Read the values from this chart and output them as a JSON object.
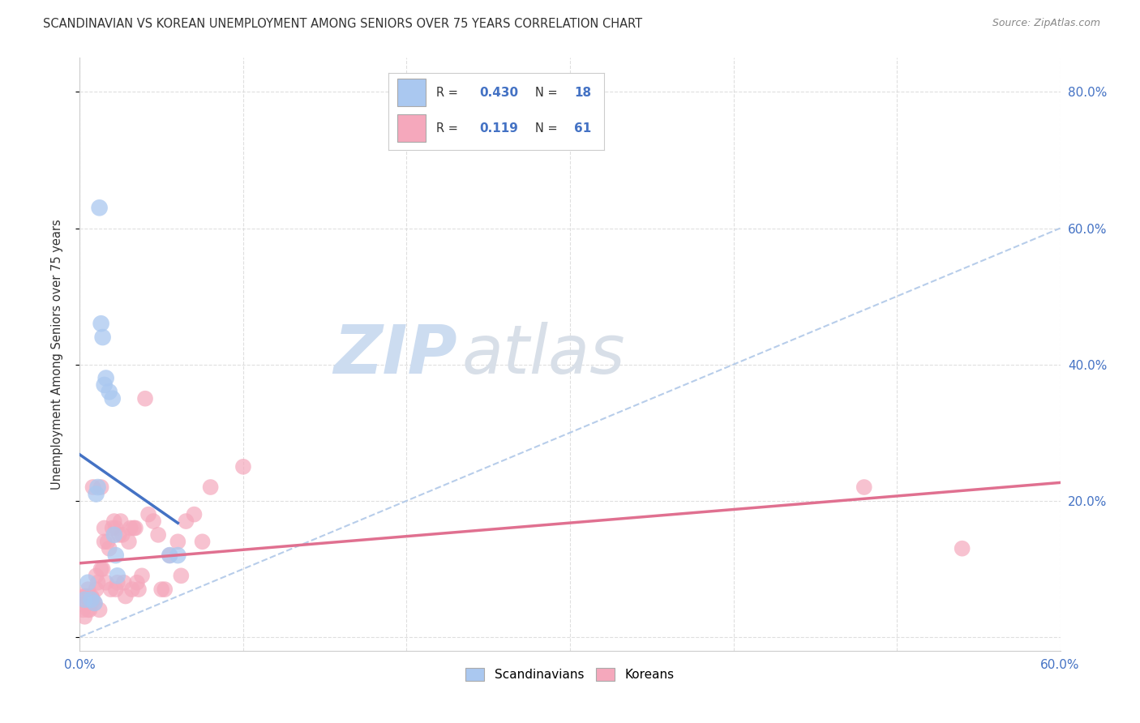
{
  "title": "SCANDINAVIAN VS KOREAN UNEMPLOYMENT AMONG SENIORS OVER 75 YEARS CORRELATION CHART",
  "source": "Source: ZipAtlas.com",
  "ylabel": "Unemployment Among Seniors over 75 years",
  "xlim": [
    0.0,
    0.6
  ],
  "ylim": [
    -0.02,
    0.85
  ],
  "scand_color": "#aac8f0",
  "korean_color": "#f5a8bc",
  "scand_line_color": "#4472c4",
  "korean_line_color": "#e07090",
  "diagonal_color": "#b0c8e8",
  "watermark_zip_color": "#ccdcf0",
  "watermark_atlas_color": "#d8dfe8",
  "background_color": "#ffffff",
  "scand_points_x": [
    0.003,
    0.005,
    0.007,
    0.009,
    0.01,
    0.011,
    0.012,
    0.013,
    0.014,
    0.015,
    0.016,
    0.018,
    0.02,
    0.021,
    0.022,
    0.023,
    0.055,
    0.06
  ],
  "scand_points_y": [
    0.055,
    0.08,
    0.055,
    0.05,
    0.21,
    0.22,
    0.63,
    0.46,
    0.44,
    0.37,
    0.38,
    0.36,
    0.35,
    0.15,
    0.12,
    0.09,
    0.12,
    0.12
  ],
  "korean_points_x": [
    0.002,
    0.003,
    0.003,
    0.004,
    0.004,
    0.005,
    0.005,
    0.006,
    0.006,
    0.007,
    0.007,
    0.008,
    0.008,
    0.009,
    0.01,
    0.01,
    0.011,
    0.012,
    0.013,
    0.013,
    0.014,
    0.015,
    0.015,
    0.016,
    0.017,
    0.018,
    0.019,
    0.02,
    0.021,
    0.022,
    0.022,
    0.023,
    0.024,
    0.025,
    0.026,
    0.027,
    0.028,
    0.03,
    0.031,
    0.032,
    0.033,
    0.034,
    0.035,
    0.036,
    0.038,
    0.04,
    0.042,
    0.045,
    0.048,
    0.05,
    0.052,
    0.055,
    0.06,
    0.062,
    0.065,
    0.07,
    0.075,
    0.08,
    0.1,
    0.48,
    0.54
  ],
  "korean_points_y": [
    0.04,
    0.06,
    0.03,
    0.05,
    0.06,
    0.04,
    0.07,
    0.06,
    0.04,
    0.05,
    0.06,
    0.055,
    0.22,
    0.05,
    0.07,
    0.09,
    0.08,
    0.04,
    0.1,
    0.22,
    0.1,
    0.14,
    0.16,
    0.08,
    0.14,
    0.13,
    0.07,
    0.16,
    0.17,
    0.07,
    0.16,
    0.08,
    0.15,
    0.17,
    0.15,
    0.08,
    0.06,
    0.14,
    0.16,
    0.07,
    0.16,
    0.16,
    0.08,
    0.07,
    0.09,
    0.35,
    0.18,
    0.17,
    0.15,
    0.07,
    0.07,
    0.12,
    0.14,
    0.09,
    0.17,
    0.18,
    0.14,
    0.22,
    0.25,
    0.22,
    0.13
  ],
  "grid_color": "#d8d8d8",
  "tick_color": "#4472c4",
  "ylabel_color": "#333333"
}
